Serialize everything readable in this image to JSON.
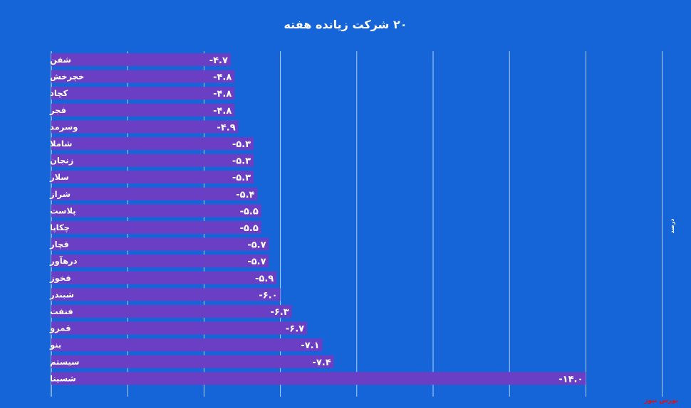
{
  "colors": {
    "background": "#1565d8",
    "bar": "#6a3fc4",
    "gridline": "#c8dcff",
    "source_text": "#e01010"
  },
  "source_label": "بورس نیوز",
  "chart_data": {
    "type": "bar",
    "orientation": "horizontal",
    "title": "۲۰ شرکت زیانده هفته",
    "ylabel": "درصد",
    "xlabel": "",
    "grid": true,
    "legend": "none",
    "categories": [
      "شفن",
      "خچرخش",
      "کچاد",
      "فجر",
      "وسرمد",
      "شاملا",
      "زنجان",
      "سلار",
      "شراز",
      "پلاست",
      "چکاپا",
      "قچار",
      "درهآور",
      "فخوز",
      "شبندر",
      "فنفت",
      "قمرو",
      "بنو",
      "سیستم",
      "شسینا"
    ],
    "values": [
      -4.7,
      -4.8,
      -4.8,
      -4.8,
      -4.9,
      -5.3,
      -5.3,
      -5.3,
      -5.4,
      -5.5,
      -5.5,
      -5.7,
      -5.7,
      -5.9,
      -6.0,
      -6.3,
      -6.7,
      -7.1,
      -7.4,
      -14.0
    ],
    "value_labels": [
      "-۴.۷",
      "-۴.۸",
      "-۴.۸",
      "-۴.۸",
      "-۴.۹",
      "-۵.۳",
      "-۵.۳",
      "-۵.۳",
      "-۵.۴",
      "-۵.۵",
      "-۵.۵",
      "-۵.۷",
      "-۵.۷",
      "-۵.۹",
      "-۶.۰",
      "-۶.۳",
      "-۶.۷",
      "-۷.۱",
      "-۷.۴",
      "-۱۴.۰"
    ],
    "xlim": [
      -16,
      0
    ]
  }
}
